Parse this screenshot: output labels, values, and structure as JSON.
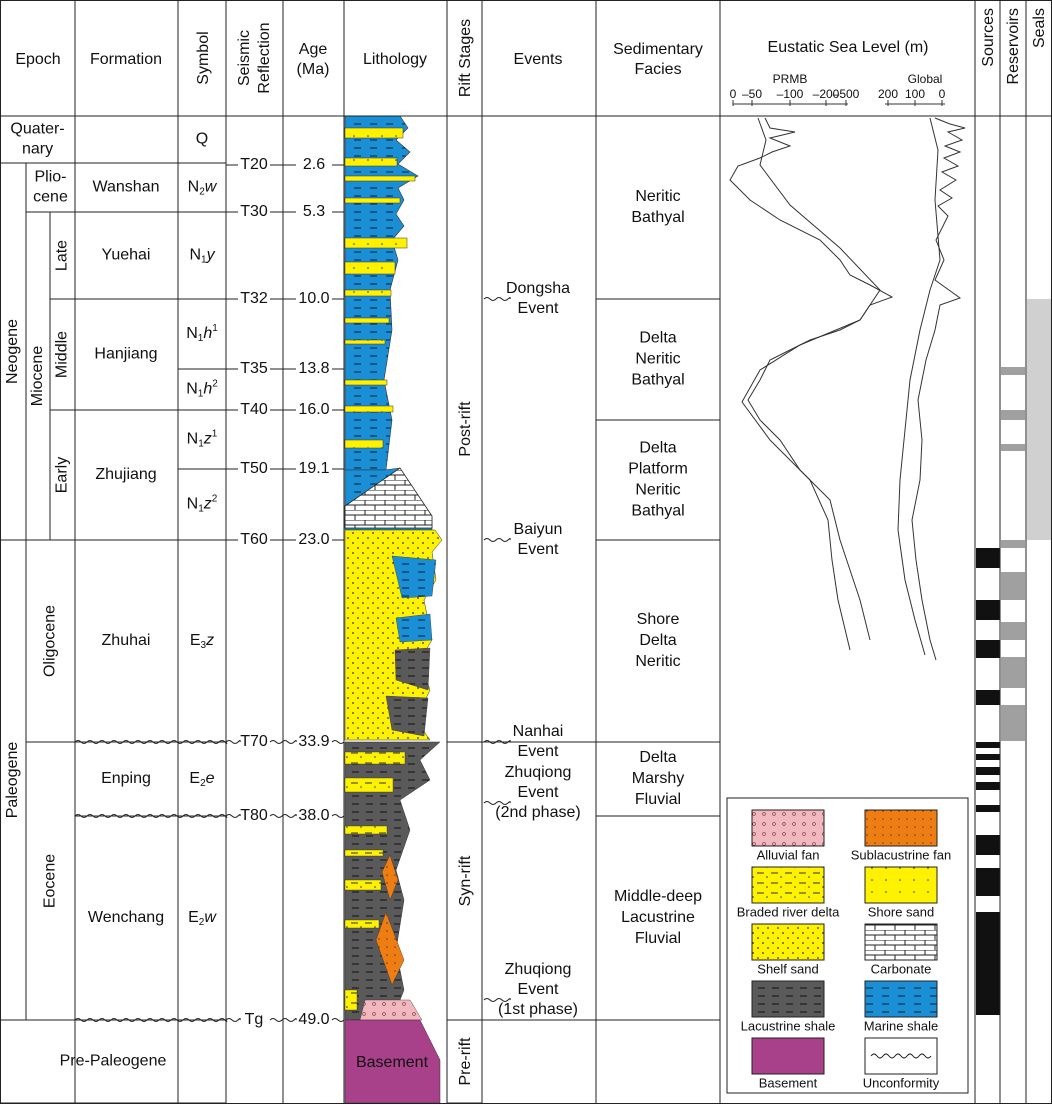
{
  "header": {
    "epoch": "Epoch",
    "formation": "Formation",
    "symbol": "Symbol",
    "seismic": [
      "Seismic",
      "Reflection"
    ],
    "age": [
      "Age",
      "(Ma)"
    ],
    "lithology": "Lithology",
    "rift": "Rift Stages",
    "events": "Events",
    "facies": [
      "Sedimentary",
      "Facies"
    ],
    "sea_level": "Eustatic Sea Level (m)",
    "prmb": "PRMB",
    "global": "Global",
    "prmb_ticks": [
      "0",
      "–50",
      "–100",
      "–200",
      "–500"
    ],
    "global_ticks": [
      "200",
      "100",
      "0"
    ],
    "sources": "Sources",
    "reservoirs": "Reservoirs",
    "seals": "Seals"
  },
  "units": [
    [
      "Quater-",
      "nary"
    ],
    [
      "Neogene"
    ],
    [
      "Plio-",
      "cene"
    ],
    [
      "Miocene"
    ],
    [
      "Late"
    ],
    [
      "Middle"
    ],
    [
      "Early"
    ],
    [
      "Paleogene"
    ],
    [
      "Oligocene"
    ],
    [
      "Eocene"
    ],
    [
      "Pre-Paleogene"
    ]
  ],
  "formations": [
    "Wanshan",
    "Yuehai",
    "Hanjiang",
    "Zhujiang",
    "Zhuhai",
    "Enping",
    "Wenchang"
  ],
  "symbols": [
    {
      "main": "Q"
    },
    {
      "main": "N",
      "sub": "2",
      "letter": "w"
    },
    {
      "main": "N",
      "sub": "1",
      "letter": "y"
    },
    {
      "main": "N",
      "sub": "1",
      "letter": "h",
      "sup": "1"
    },
    {
      "main": "N",
      "sub": "1",
      "letter": "h",
      "sup": "2"
    },
    {
      "main": "N",
      "sub": "1",
      "letter": "z",
      "sup": "1"
    },
    {
      "main": "N",
      "sub": "1",
      "letter": "z",
      "sup": "2"
    },
    {
      "main": "E",
      "sub": "3",
      "letter": "z"
    },
    {
      "main": "E",
      "sub": "2",
      "letter": "e"
    },
    {
      "main": "E",
      "sub": "2",
      "letter": "w"
    }
  ],
  "horizons": [
    {
      "seismic": "T20",
      "age": "2.6"
    },
    {
      "seismic": "T30",
      "age": "5.3"
    },
    {
      "seismic": "T32",
      "age": "10.0"
    },
    {
      "seismic": "T35",
      "age": "13.8"
    },
    {
      "seismic": "T40",
      "age": "16.0"
    },
    {
      "seismic": "T50",
      "age": "19.1"
    },
    {
      "seismic": "T60",
      "age": "23.0"
    },
    {
      "seismic": "T70",
      "age": "33.9"
    },
    {
      "seismic": "T80",
      "age": "38.0"
    },
    {
      "seismic": "Tg",
      "age": "49.0"
    }
  ],
  "lithology": {
    "basement": "Basement"
  },
  "rift_stages": [
    "Post-rift",
    "Syn-rift",
    "Pre-rift"
  ],
  "events": [
    [
      "Dongsha",
      "Event"
    ],
    [
      "Baiyun",
      "Event"
    ],
    [
      "Nanhai",
      "Event"
    ],
    [
      "Zhuqiong",
      "Event",
      "(2nd phase)"
    ],
    [
      "Zhuqiong",
      "Event",
      "(1st phase)"
    ]
  ],
  "facies": [
    [
      "Neritic",
      "Bathyal"
    ],
    [
      "Delta",
      "Neritic",
      "Bathyal"
    ],
    [
      "Delta",
      "Platform",
      "Neritic",
      "Bathyal"
    ],
    [
      "Shore",
      "Delta",
      "Neritic"
    ],
    [
      "Delta",
      "Marshy",
      "Fluvial"
    ],
    [
      "Middle-deep",
      "Lacustrine",
      "Fluvial"
    ]
  ],
  "legend": [
    "Alluvial fan",
    "Sublacustrine fan",
    "Braded river delta",
    "Shore sand",
    "Shelf sand",
    "Carbonate",
    "Lacustrine shale",
    "Marine shale",
    "Basement",
    "Unconformity"
  ]
}
